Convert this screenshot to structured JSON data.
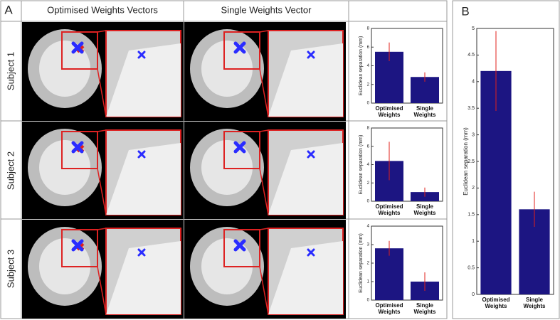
{
  "panel_labels": [
    "A",
    "B"
  ],
  "column_headers": [
    "Optimised Weights Vectors",
    "Single Weights Vector"
  ],
  "row_labels": [
    "Subject 1",
    "Subject 2",
    "Subject 3"
  ],
  "chart_data": [
    {
      "type": "bar",
      "ylabel": "Euclidean separation (mm)",
      "categories": [
        "Optimised Weights",
        "Single Weights"
      ],
      "values": [
        5.5,
        2.8
      ],
      "errors": [
        1.0,
        0.5
      ],
      "color": "#1c1582",
      "error_color": "#e0201b",
      "ylim": [
        0,
        8
      ],
      "yticks": [
        0,
        2,
        4,
        6,
        8
      ]
    },
    {
      "type": "bar",
      "ylabel": "Euclidean separation (mm)",
      "categories": [
        "Optimised Weights",
        "Single Weights"
      ],
      "values": [
        4.4,
        1.0
      ],
      "errors": [
        2.1,
        0.5
      ],
      "color": "#1c1582",
      "error_color": "#e0201b",
      "ylim": [
        0,
        8
      ],
      "yticks": [
        0,
        2,
        4,
        6,
        8
      ]
    },
    {
      "type": "bar",
      "ylabel": "Euclidean separation (mm)",
      "categories": [
        "Optimised Weights",
        "Single Weights"
      ],
      "values": [
        2.8,
        1.0
      ],
      "errors": [
        0.4,
        0.5
      ],
      "color": "#1c1582",
      "error_color": "#e0201b",
      "ylim": [
        0,
        4
      ],
      "yticks": [
        0,
        1,
        2,
        3,
        4
      ]
    },
    {
      "type": "bar",
      "ylabel": "Euclidean separation (mm)",
      "categories": [
        "Optimised Weights",
        "Single Weights"
      ],
      "values": [
        4.2,
        1.6
      ],
      "errors": [
        0.75,
        0.33
      ],
      "color": "#1c1582",
      "error_color": "#e0201b",
      "ylim": [
        0,
        5
      ],
      "yticks": [
        0,
        0.5,
        1,
        1.5,
        2,
        2.5,
        3,
        3.5,
        4,
        4.5,
        5
      ]
    }
  ]
}
